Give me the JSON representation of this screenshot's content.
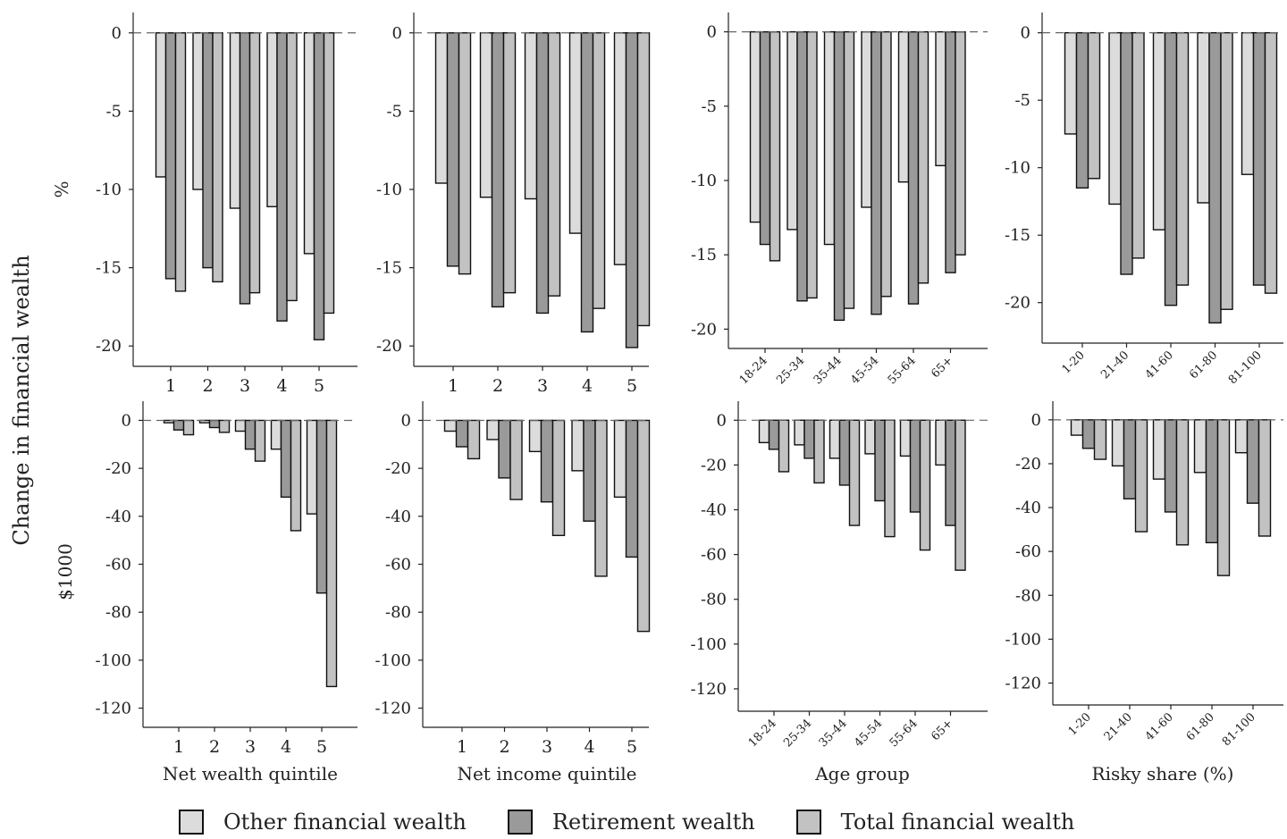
{
  "figure": {
    "ylabel": "Change in financial wealth",
    "row_labels": [
      "%",
      "$1000"
    ],
    "xlabels": [
      "Net wealth quintile",
      "Net income quintile",
      "Age group",
      "Risky share (%)"
    ]
  },
  "colors": {
    "other": "#dcdcdc",
    "retirement": "#9a9a9a",
    "total": "#c2c2c2"
  },
  "legend": [
    {
      "label": "Other financial wealth",
      "color": "#dcdcdc"
    },
    {
      "label": "Retirement wealth",
      "color": "#9a9a9a"
    },
    {
      "label": "Total financial wealth",
      "color": "#c2c2c2"
    }
  ],
  "chart_data": [
    {
      "type": "bar",
      "row": "%",
      "categories": [
        "1",
        "2",
        "3",
        "4",
        "5"
      ],
      "ylim": [
        -21.3,
        1.3
      ],
      "yticks": [
        0,
        -5,
        -10,
        -15,
        -20
      ],
      "tick_rotate": false,
      "series": [
        {
          "name": "Other financial wealth",
          "values": [
            -9.2,
            -10.0,
            -11.2,
            -11.1,
            -14.1
          ]
        },
        {
          "name": "Retirement wealth",
          "values": [
            -15.7,
            -15.0,
            -17.3,
            -18.4,
            -19.6
          ]
        },
        {
          "name": "Total financial wealth",
          "values": [
            -16.5,
            -15.9,
            -16.6,
            -17.1,
            -17.9
          ]
        }
      ]
    },
    {
      "type": "bar",
      "row": "%",
      "categories": [
        "1",
        "2",
        "3",
        "4",
        "5"
      ],
      "ylim": [
        -21.3,
        1.3
      ],
      "yticks": [
        0,
        -5,
        -10,
        -15,
        -20
      ],
      "tick_rotate": false,
      "series": [
        {
          "name": "Other financial wealth",
          "values": [
            -9.6,
            -10.5,
            -10.6,
            -12.8,
            -14.8
          ]
        },
        {
          "name": "Retirement wealth",
          "values": [
            -14.9,
            -17.5,
            -17.9,
            -19.1,
            -20.1
          ]
        },
        {
          "name": "Total financial wealth",
          "values": [
            -15.4,
            -16.6,
            -16.8,
            -17.6,
            -18.7
          ]
        }
      ]
    },
    {
      "type": "bar",
      "row": "%",
      "categories": [
        "18-24",
        "25-34",
        "35-44",
        "45-54",
        "55-64",
        "65+"
      ],
      "ylim": [
        -21.3,
        1.3
      ],
      "yticks": [
        0,
        -5,
        -10,
        -15,
        -20
      ],
      "tick_rotate": true,
      "series": [
        {
          "name": "Other financial wealth",
          "values": [
            -12.8,
            -13.3,
            -14.3,
            -11.8,
            -10.1,
            -9.0
          ]
        },
        {
          "name": "Retirement wealth",
          "values": [
            -14.3,
            -18.1,
            -19.4,
            -19.0,
            -18.3,
            -16.2
          ]
        },
        {
          "name": "Total financial wealth",
          "values": [
            -15.4,
            -17.9,
            -18.6,
            -17.8,
            -16.9,
            -15.0
          ]
        }
      ]
    },
    {
      "type": "bar",
      "row": "%",
      "categories": [
        "1-20",
        "21-40",
        "41-60",
        "61-80",
        "81-100"
      ],
      "ylim": [
        -23,
        1.5
      ],
      "yticks": [
        0,
        -5,
        -10,
        -15,
        -20
      ],
      "tick_rotate": true,
      "series": [
        {
          "name": "Other financial wealth",
          "values": [
            -7.5,
            -12.7,
            -14.6,
            -12.6,
            -10.5
          ]
        },
        {
          "name": "Retirement wealth",
          "values": [
            -11.5,
            -17.9,
            -20.2,
            -21.5,
            -18.7
          ]
        },
        {
          "name": "Total financial wealth",
          "values": [
            -10.8,
            -16.7,
            -18.7,
            -20.5,
            -19.3
          ]
        }
      ]
    },
    {
      "type": "bar",
      "row": "$1000",
      "categories": [
        "1",
        "2",
        "3",
        "4",
        "5"
      ],
      "ylim": [
        -128,
        8
      ],
      "yticks": [
        0,
        -20,
        -40,
        -60,
        -80,
        -100,
        -120
      ],
      "tick_rotate": false,
      "series": [
        {
          "name": "Other financial wealth",
          "values": [
            -1,
            -1,
            -4.5,
            -12,
            -39
          ]
        },
        {
          "name": "Retirement wealth",
          "values": [
            -4,
            -3,
            -12,
            -32,
            -72
          ]
        },
        {
          "name": "Total financial wealth",
          "values": [
            -6,
            -5,
            -17,
            -46,
            -111
          ]
        }
      ]
    },
    {
      "type": "bar",
      "row": "$1000",
      "categories": [
        "1",
        "2",
        "3",
        "4",
        "5"
      ],
      "ylim": [
        -128,
        8
      ],
      "yticks": [
        0,
        -20,
        -40,
        -60,
        -80,
        -100,
        -120
      ],
      "tick_rotate": false,
      "series": [
        {
          "name": "Other financial wealth",
          "values": [
            -4.5,
            -8,
            -13,
            -21,
            -32
          ]
        },
        {
          "name": "Retirement wealth",
          "values": [
            -11,
            -24,
            -34,
            -42,
            -57
          ]
        },
        {
          "name": "Total financial wealth",
          "values": [
            -16,
            -33,
            -48,
            -65,
            -88
          ]
        }
      ]
    },
    {
      "type": "bar",
      "row": "$1000",
      "categories": [
        "18-24",
        "25-34",
        "35-44",
        "45-54",
        "55-64",
        "65+"
      ],
      "ylim": [
        -130,
        8.5
      ],
      "yticks": [
        0,
        -20,
        -40,
        -60,
        -80,
        -100,
        -120
      ],
      "tick_rotate": true,
      "series": [
        {
          "name": "Other financial wealth",
          "values": [
            -10,
            -11,
            -17,
            -15,
            -16,
            -20
          ]
        },
        {
          "name": "Retirement wealth",
          "values": [
            -13,
            -17,
            -29,
            -36,
            -41,
            -47
          ]
        },
        {
          "name": "Total financial wealth",
          "values": [
            -23,
            -28,
            -47,
            -52,
            -58,
            -67
          ]
        }
      ]
    },
    {
      "type": "bar",
      "row": "$1000",
      "categories": [
        "1-20",
        "21-40",
        "41-60",
        "61-80",
        "81-100"
      ],
      "ylim": [
        -130,
        8.5
      ],
      "yticks": [
        0,
        -20,
        -40,
        -60,
        -80,
        -100,
        -120
      ],
      "tick_rotate": true,
      "series": [
        {
          "name": "Other financial wealth",
          "values": [
            -7,
            -21,
            -27,
            -24,
            -15
          ]
        },
        {
          "name": "Retirement wealth",
          "values": [
            -13,
            -36,
            -42,
            -56,
            -38
          ]
        },
        {
          "name": "Total financial wealth",
          "values": [
            -18,
            -51,
            -57,
            -71,
            -53
          ]
        }
      ]
    }
  ]
}
